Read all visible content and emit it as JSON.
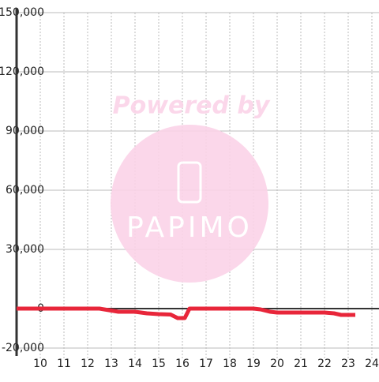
{
  "chart_data": {
    "type": "line",
    "x": [
      9,
      12.5,
      13,
      13.3,
      14,
      14.5,
      15,
      15.5,
      15.8,
      16.1,
      16.3,
      19,
      19.3,
      19.7,
      20,
      22,
      22.4,
      22.7,
      23.3
    ],
    "series": [
      {
        "color": "#e8263a",
        "values": [
          0,
          0,
          -1000,
          -1600,
          -1600,
          -2400,
          -2800,
          -3000,
          -4800,
          -4800,
          0,
          0,
          -400,
          -1600,
          -2000,
          -2000,
          -2400,
          -3200,
          -3200
        ]
      }
    ],
    "xlim": [
      9,
      24.3
    ],
    "xticks": [
      10,
      11,
      12,
      13,
      14,
      15,
      16,
      17,
      18,
      19,
      20,
      21,
      22,
      23,
      24
    ],
    "ylim": [
      -20000,
      150000
    ],
    "yticks": [
      {
        "value": -20000,
        "label": "-20,000"
      },
      0,
      {
        "value": 30000,
        "label": "30,000"
      },
      {
        "value": 60000,
        "label": "60,000"
      },
      {
        "value": 90000,
        "label": "90,000"
      },
      {
        "value": 120000,
        "label": "120,000"
      },
      {
        "value": 150000,
        "label": "150,000"
      }
    ],
    "grid": true
  },
  "watermark": {
    "line1": "Powered by",
    "line2": "PAPIMO"
  }
}
